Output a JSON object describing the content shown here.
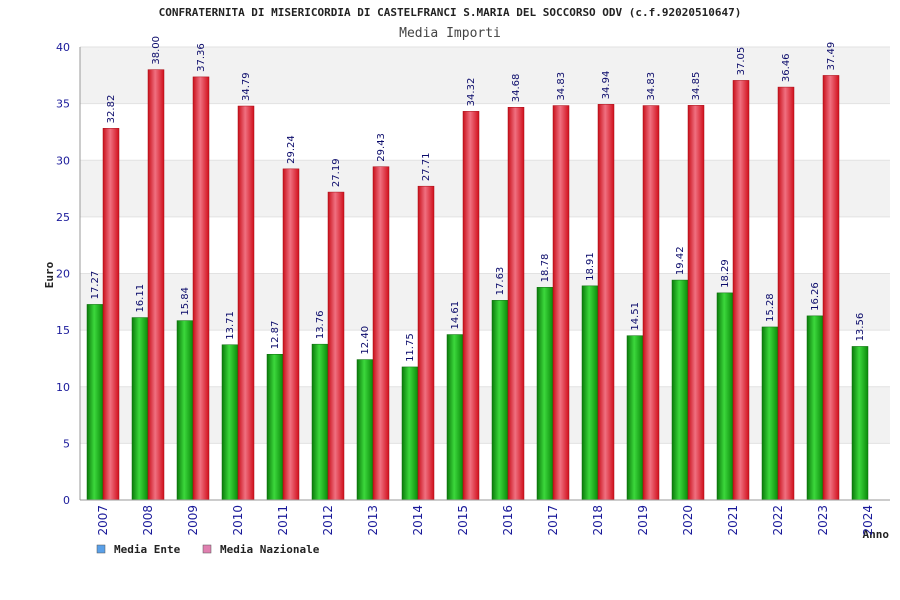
{
  "chart_data": {
    "type": "bar",
    "title": "CONFRATERNITA DI MISERICORDIA DI CASTELFRANCI S.MARIA DEL SOCCORSO ODV (c.f.92020510647)",
    "subtitle": "Media Importi",
    "xlabel": "Anno",
    "ylabel": "Euro",
    "ylim": [
      0,
      40
    ],
    "yticks": [
      0,
      5,
      10,
      15,
      20,
      25,
      30,
      35,
      40
    ],
    "categories": [
      "2007",
      "2008",
      "2009",
      "2010",
      "2011",
      "2012",
      "2013",
      "2014",
      "2015",
      "2016",
      "2017",
      "2018",
      "2019",
      "2020",
      "2021",
      "2022",
      "2023",
      "2024"
    ],
    "series": [
      {
        "name": "Media Ente",
        "color": "#1aaa1a",
        "legend_color": "#5aa0e8",
        "values": [
          17.27,
          16.11,
          15.84,
          13.71,
          12.87,
          13.76,
          12.4,
          11.75,
          14.61,
          17.63,
          18.78,
          18.91,
          14.51,
          19.42,
          18.29,
          15.28,
          16.26,
          13.56
        ],
        "labels": [
          "17.27",
          "16.11",
          "15.84",
          "13.71",
          "12.87",
          "13.76",
          "12.40",
          "11.75",
          "14.61",
          "17.63",
          "18.78",
          "18.91",
          "14.51",
          "19.42",
          "18.29",
          "15.28",
          "16.26",
          "13.56"
        ]
      },
      {
        "name": "Media Nazionale",
        "color": "#e8202a",
        "legend_color": "#e080b0",
        "values": [
          32.82,
          38.0,
          37.36,
          34.79,
          29.24,
          27.19,
          29.43,
          27.71,
          34.32,
          34.68,
          34.83,
          34.94,
          34.83,
          34.85,
          37.05,
          36.46,
          37.49,
          null
        ],
        "labels": [
          "32.82",
          "38.00",
          "37.36",
          "34.79",
          "29.24",
          "27.19",
          "29.43",
          "27.71",
          "34.32",
          "34.68",
          "34.83",
          "34.94",
          "34.83",
          "34.85",
          "37.05",
          "36.46",
          "37.49",
          ""
        ]
      }
    ],
    "grid": true,
    "legend_position": "bottom-left"
  }
}
